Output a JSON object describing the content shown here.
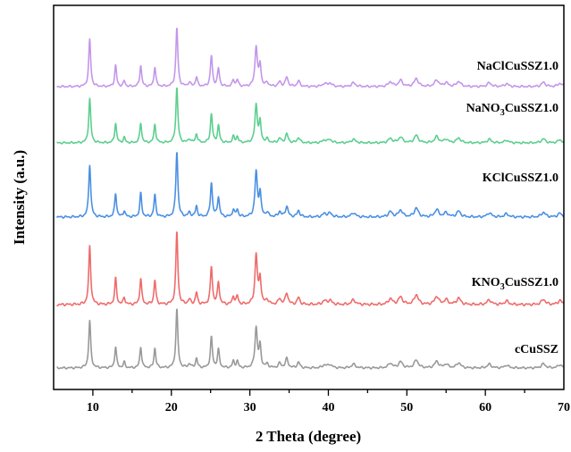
{
  "chart_data": {
    "type": "line",
    "title": "",
    "xlabel": "2 Theta (degree)",
    "ylabel": "Intensity (a.u.)",
    "xlim": [
      5,
      70
    ],
    "xticks": [
      10,
      20,
      30,
      40,
      50,
      60,
      70
    ],
    "yticks_shown": false,
    "grid": false,
    "legend": "inline-labels-right",
    "peaks": [
      {
        "x": 9.6,
        "h": 1.0,
        "w": 0.15
      },
      {
        "x": 12.9,
        "h": 0.45,
        "w": 0.14
      },
      {
        "x": 14.0,
        "h": 0.12,
        "w": 0.14
      },
      {
        "x": 16.1,
        "h": 0.45,
        "w": 0.14
      },
      {
        "x": 17.9,
        "h": 0.42,
        "w": 0.14
      },
      {
        "x": 20.7,
        "h": 1.25,
        "w": 0.15
      },
      {
        "x": 22.3,
        "h": 0.08,
        "w": 0.2
      },
      {
        "x": 23.2,
        "h": 0.2,
        "w": 0.15
      },
      {
        "x": 25.1,
        "h": 0.65,
        "w": 0.15
      },
      {
        "x": 26.0,
        "h": 0.38,
        "w": 0.15
      },
      {
        "x": 27.9,
        "h": 0.14,
        "w": 0.15
      },
      {
        "x": 28.4,
        "h": 0.14,
        "w": 0.15
      },
      {
        "x": 30.8,
        "h": 0.85,
        "w": 0.18
      },
      {
        "x": 31.3,
        "h": 0.45,
        "w": 0.15
      },
      {
        "x": 32.2,
        "h": 0.08,
        "w": 0.2
      },
      {
        "x": 33.8,
        "h": 0.1,
        "w": 0.2
      },
      {
        "x": 34.7,
        "h": 0.2,
        "w": 0.2
      },
      {
        "x": 36.2,
        "h": 0.12,
        "w": 0.2
      },
      {
        "x": 39.5,
        "h": 0.06,
        "w": 0.3
      },
      {
        "x": 40.2,
        "h": 0.07,
        "w": 0.3
      },
      {
        "x": 43.2,
        "h": 0.08,
        "w": 0.3
      },
      {
        "x": 47.9,
        "h": 0.1,
        "w": 0.3
      },
      {
        "x": 49.2,
        "h": 0.13,
        "w": 0.3
      },
      {
        "x": 51.2,
        "h": 0.17,
        "w": 0.3
      },
      {
        "x": 53.8,
        "h": 0.14,
        "w": 0.3
      },
      {
        "x": 55.0,
        "h": 0.08,
        "w": 0.3
      },
      {
        "x": 56.6,
        "h": 0.11,
        "w": 0.3
      },
      {
        "x": 60.5,
        "h": 0.08,
        "w": 0.3
      },
      {
        "x": 62.7,
        "h": 0.06,
        "w": 0.3
      },
      {
        "x": 67.4,
        "h": 0.09,
        "w": 0.3
      },
      {
        "x": 69.5,
        "h": 0.07,
        "w": 0.3
      }
    ],
    "series": [
      {
        "name": "cCuSSZ",
        "color": "#999999",
        "scale": 0.85
      },
      {
        "name": "KNO3CuSSZ1.0",
        "name_main": "KNO",
        "name_sub": "3",
        "name_rest": "CuSSZ1.0",
        "color": "#ef6b6b",
        "scale": 1.05
      },
      {
        "name": "KClCuSSZ1.0",
        "color": "#4a90e2",
        "scale": 0.95
      },
      {
        "name": "NaNO3CuSSZ1.0",
        "name_main": "NaNO",
        "name_sub": "3",
        "name_rest": "CuSSZ1.0",
        "color": "#5ccf8f",
        "scale": 0.8
      },
      {
        "name": "NaClCuSSZ1.0",
        "color": "#c496ea",
        "scale": 0.85
      }
    ]
  }
}
